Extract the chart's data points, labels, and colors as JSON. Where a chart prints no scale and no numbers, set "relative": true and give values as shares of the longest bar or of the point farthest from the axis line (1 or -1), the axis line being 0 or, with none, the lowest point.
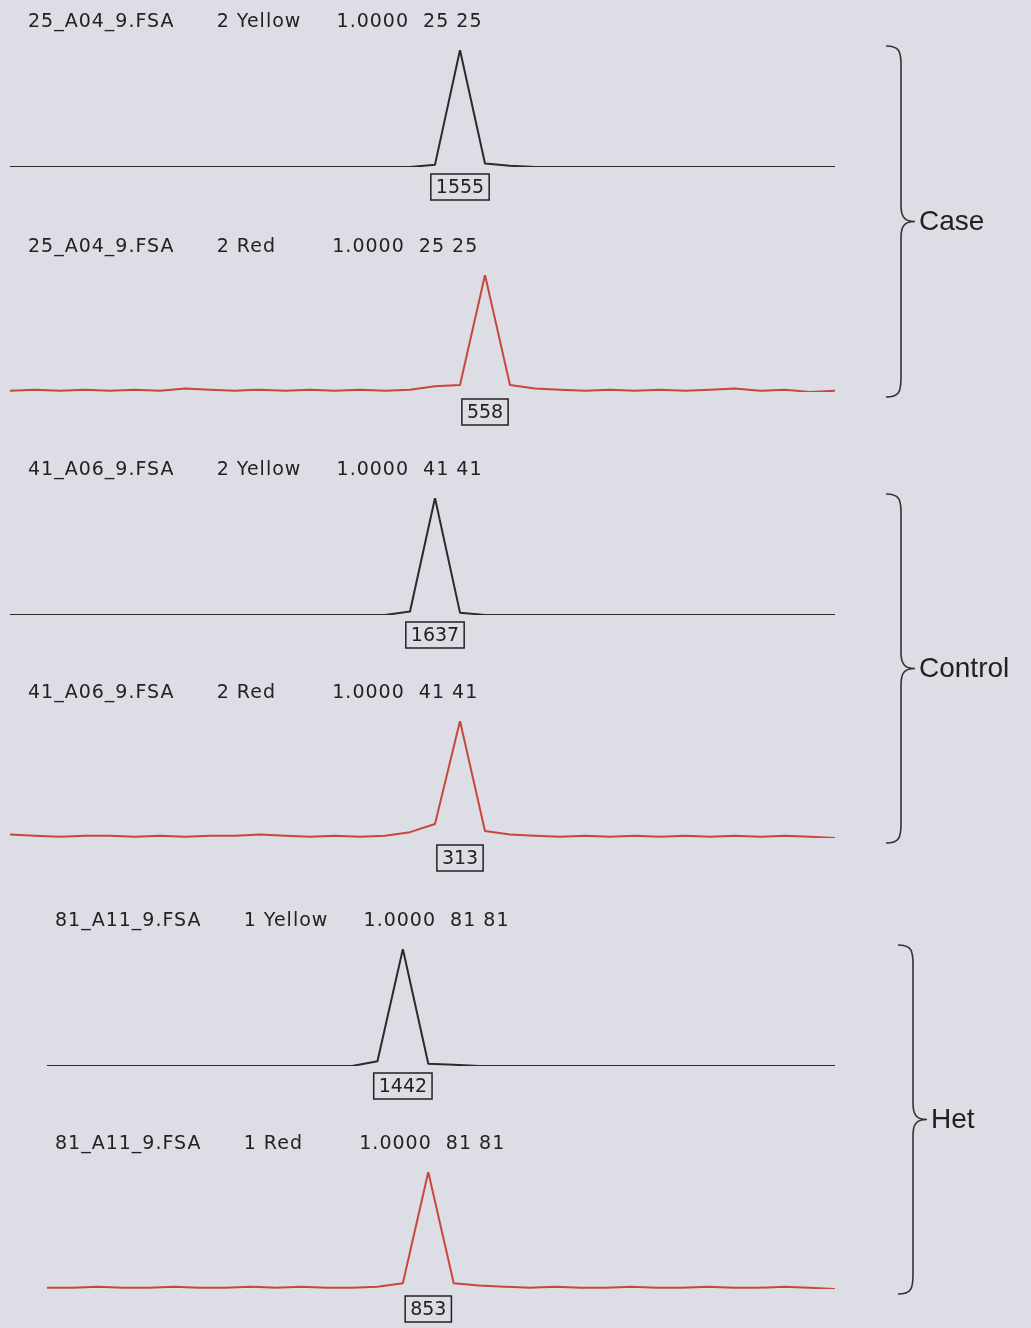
{
  "chart_data": [
    {
      "type": "line",
      "title": "25_A04_9.FSA      2 Yellow     1.0000  25 25",
      "relative": true,
      "color": "#2b2b2b",
      "annotations": [
        "1555",
        "Case"
      ],
      "categories": [
        null,
        null,
        null,
        null,
        null,
        null,
        null,
        null,
        null,
        null,
        null,
        null,
        null,
        null,
        null,
        null,
        null,
        null,
        null,
        null,
        null,
        null,
        null,
        null,
        null,
        null,
        null,
        null,
        null,
        null,
        null,
        null,
        null,
        null
      ],
      "values": [
        0,
        0,
        0,
        0,
        0,
        0,
        0,
        0,
        0,
        0,
        0,
        0,
        0,
        0,
        0,
        0,
        0,
        0.02,
        1,
        0.03,
        0.01,
        0,
        0,
        0,
        0,
        0,
        0,
        0,
        0,
        0,
        0,
        0,
        0,
        0
      ]
    },
    {
      "type": "line",
      "title": "25_A04_9.FSA      2 Red        1.0000  25 25",
      "relative": true,
      "color": "#c8473a",
      "annotations": [
        "558"
      ],
      "categories": [
        null,
        null,
        null,
        null,
        null,
        null,
        null,
        null,
        null,
        null,
        null,
        null,
        null,
        null,
        null,
        null,
        null,
        null,
        null,
        null,
        null,
        null,
        null,
        null,
        null,
        null,
        null,
        null,
        null,
        null,
        null,
        null,
        null,
        null
      ],
      "values": [
        0.01,
        0.02,
        0.01,
        0.02,
        0.01,
        0.02,
        0.01,
        0.03,
        0.02,
        0.01,
        0.02,
        0.01,
        0.02,
        0.01,
        0.02,
        0.01,
        0.02,
        0.05,
        0.06,
        1,
        0.06,
        0.03,
        0.02,
        0.01,
        0.02,
        0.01,
        0.02,
        0.01,
        0.02,
        0.03,
        0.01,
        0.02,
        0,
        0.01
      ]
    },
    {
      "type": "line",
      "title": "41_A06_9.FSA      2 Yellow     1.0000  41 41",
      "relative": true,
      "color": "#2b2b2b",
      "annotations": [
        "1637",
        "Control"
      ],
      "categories": [
        null,
        null,
        null,
        null,
        null,
        null,
        null,
        null,
        null,
        null,
        null,
        null,
        null,
        null,
        null,
        null,
        null,
        null,
        null,
        null,
        null,
        null,
        null,
        null,
        null,
        null,
        null,
        null,
        null,
        null,
        null,
        null,
        null,
        null
      ],
      "values": [
        0,
        0,
        0,
        0,
        0,
        0,
        0,
        0,
        0,
        0,
        0,
        0,
        0,
        0,
        0,
        0,
        0.03,
        1,
        0.02,
        0,
        0,
        0,
        0,
        0,
        0,
        0,
        0,
        0,
        0,
        0,
        0,
        0,
        0,
        0
      ]
    },
    {
      "type": "line",
      "title": "41_A06_9.FSA      2 Red        1.0000  41 41",
      "relative": true,
      "color": "#c8473a",
      "annotations": [
        "313"
      ],
      "categories": [
        null,
        null,
        null,
        null,
        null,
        null,
        null,
        null,
        null,
        null,
        null,
        null,
        null,
        null,
        null,
        null,
        null,
        null,
        null,
        null,
        null,
        null,
        null,
        null,
        null,
        null,
        null,
        null,
        null,
        null,
        null,
        null,
        null,
        null
      ],
      "values": [
        0.03,
        0.02,
        0.01,
        0.02,
        0.02,
        0.01,
        0.02,
        0.01,
        0.02,
        0.02,
        0.03,
        0.02,
        0.01,
        0.02,
        0.01,
        0.02,
        0.05,
        0.12,
        1,
        0.06,
        0.03,
        0.02,
        0.01,
        0.02,
        0.01,
        0.02,
        0.01,
        0.02,
        0.01,
        0.02,
        0.01,
        0.02,
        0.01,
        0
      ]
    },
    {
      "type": "line",
      "title": "81_A11_9.FSA      1 Yellow     1.0000  81 81",
      "relative": true,
      "color": "#2b2b2b",
      "annotations": [
        "1442",
        "Het"
      ],
      "categories": [
        null,
        null,
        null,
        null,
        null,
        null,
        null,
        null,
        null,
        null,
        null,
        null,
        null,
        null,
        null,
        null,
        null,
        null,
        null,
        null,
        null,
        null,
        null,
        null,
        null,
        null,
        null,
        null,
        null,
        null,
        null,
        null
      ],
      "values": [
        0,
        0,
        0,
        0,
        0,
        0,
        0,
        0,
        0,
        0,
        0,
        0,
        0,
        0.04,
        1,
        0.02,
        0.01,
        0,
        0,
        0,
        0,
        0,
        0,
        0,
        0,
        0,
        0,
        0,
        0,
        0,
        0,
        0
      ]
    },
    {
      "type": "line",
      "title": "81_A11_9.FSA      1 Red        1.0000  81 81",
      "relative": true,
      "color": "#c8473a",
      "annotations": [
        "853"
      ],
      "categories": [
        null,
        null,
        null,
        null,
        null,
        null,
        null,
        null,
        null,
        null,
        null,
        null,
        null,
        null,
        null,
        null,
        null,
        null,
        null,
        null,
        null,
        null,
        null,
        null,
        null,
        null,
        null,
        null,
        null,
        null,
        null,
        null
      ],
      "values": [
        0.01,
        0.01,
        0.02,
        0.01,
        0.01,
        0.02,
        0.01,
        0.01,
        0.02,
        0.01,
        0.02,
        0.01,
        0.01,
        0.02,
        0.05,
        1,
        0.05,
        0.03,
        0.02,
        0.01,
        0.02,
        0.01,
        0.01,
        0.02,
        0.01,
        0.01,
        0.02,
        0.01,
        0.01,
        0.02,
        0.01,
        0
      ]
    }
  ]
}
